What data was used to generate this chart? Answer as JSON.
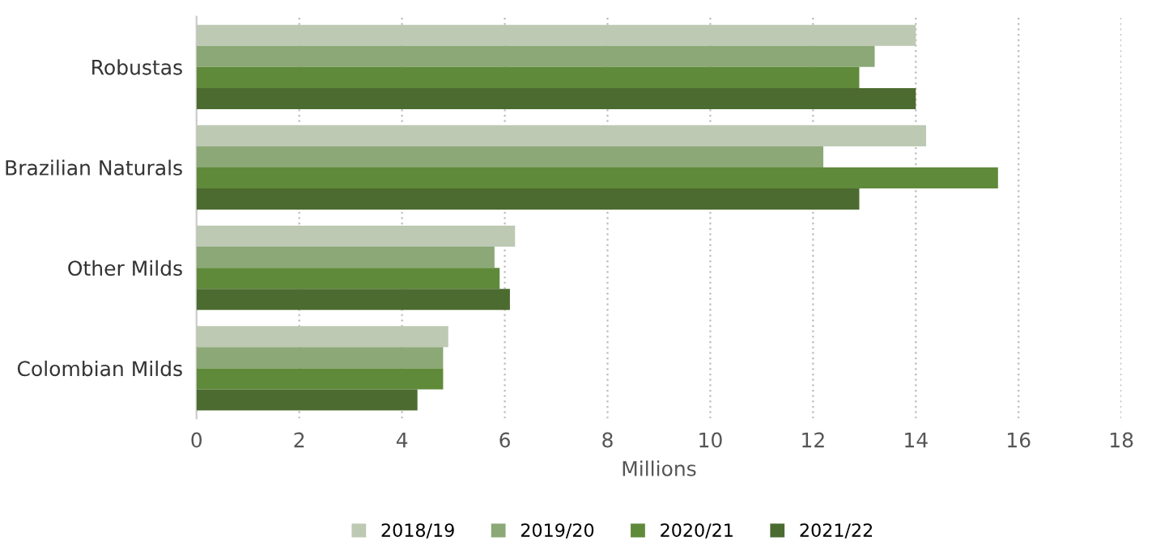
{
  "chart_data": {
    "type": "bar",
    "orientation": "horizontal",
    "xlabel": "Millions",
    "categories": [
      "Robustas",
      "Brazilian Naturals",
      "Other Milds",
      "Colombian Milds"
    ],
    "series": [
      {
        "name": "2018/19",
        "color": "#bdc9b3",
        "values": [
          14.0,
          14.2,
          6.2,
          4.9
        ]
      },
      {
        "name": "2019/20",
        "color": "#8ba876",
        "values": [
          13.2,
          12.2,
          5.8,
          4.8
        ]
      },
      {
        "name": "2020/21",
        "color": "#5f8a3a",
        "values": [
          12.9,
          15.6,
          5.9,
          4.8
        ]
      },
      {
        "name": "2021/22",
        "color": "#4c6b30",
        "values": [
          14.0,
          12.9,
          6.1,
          4.3
        ]
      }
    ],
    "xlim": [
      0,
      18
    ],
    "xticks": [
      0,
      2,
      4,
      6,
      8,
      10,
      12,
      14,
      16,
      18
    ],
    "grid": "x",
    "legend": "bottom"
  }
}
